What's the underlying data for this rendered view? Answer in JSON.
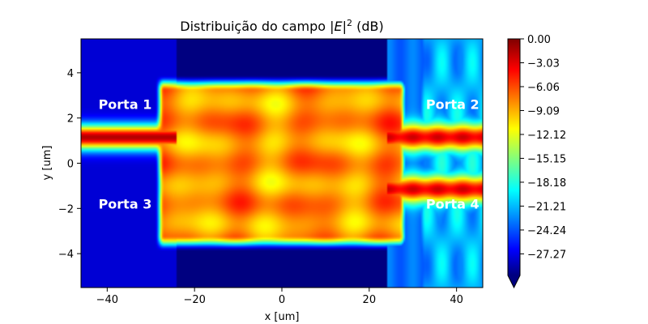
{
  "chart_data": {
    "type": "heatmap",
    "title": "Distribuição do campo |E|² (dB)",
    "title_parts": {
      "prefix": "Distribuição do campo |",
      "var": "E",
      "bar": "|",
      "sup": "2",
      "suffix": " (dB)"
    },
    "xlabel": "x [um]",
    "ylabel": "y [um]",
    "xlim": [
      -46,
      46
    ],
    "ylim": [
      -5.5,
      5.5
    ],
    "x_ticks": [
      -40,
      -20,
      0,
      20,
      40
    ],
    "x_tick_labels": [
      "−40",
      "−20",
      "0",
      "20",
      "40"
    ],
    "y_ticks": [
      4,
      2,
      0,
      -2,
      -4
    ],
    "y_tick_labels": [
      "4",
      "2",
      "0",
      "−2",
      "−4"
    ],
    "colormap": "jet",
    "colorbar": {
      "vmin": -30,
      "vmax": 0,
      "extend": "min",
      "ticks": [
        0,
        -3.03,
        -6.06,
        -9.09,
        -12.12,
        -15.15,
        -18.18,
        -21.21,
        -24.24,
        -27.27
      ],
      "tick_labels": [
        "0.00",
        "−3.03",
        "−6.06",
        "−9.09",
        "−12.12",
        "−15.15",
        "−18.18",
        "−21.21",
        "−24.24",
        "−27.27"
      ]
    },
    "structure": {
      "input_waveguide": {
        "x_range": [
          -46,
          -28
        ],
        "y_center": 1.15,
        "peak_db": -1.5
      },
      "mmi_region": {
        "x_range": [
          -28,
          28
        ],
        "y_range": [
          -3.6,
          3.6
        ],
        "level_db": -5
      },
      "output_waveguides": [
        {
          "x_range": [
            28,
            46
          ],
          "y_center": 1.15,
          "peak_db": -3
        },
        {
          "x_range": [
            28,
            46
          ],
          "y_center": -1.15,
          "peak_db": -3
        }
      ],
      "background_db": -30,
      "right_scatter_db": -20
    },
    "annotations": [
      {
        "text": "Porta 1",
        "x": -42,
        "y": 2.4
      },
      {
        "text": "Porta 2",
        "x": 33,
        "y": 2.4
      },
      {
        "text": "Porta 3",
        "x": -42,
        "y": -2.0
      },
      {
        "text": "Porta 4",
        "x": 33,
        "y": -2.0
      }
    ]
  }
}
